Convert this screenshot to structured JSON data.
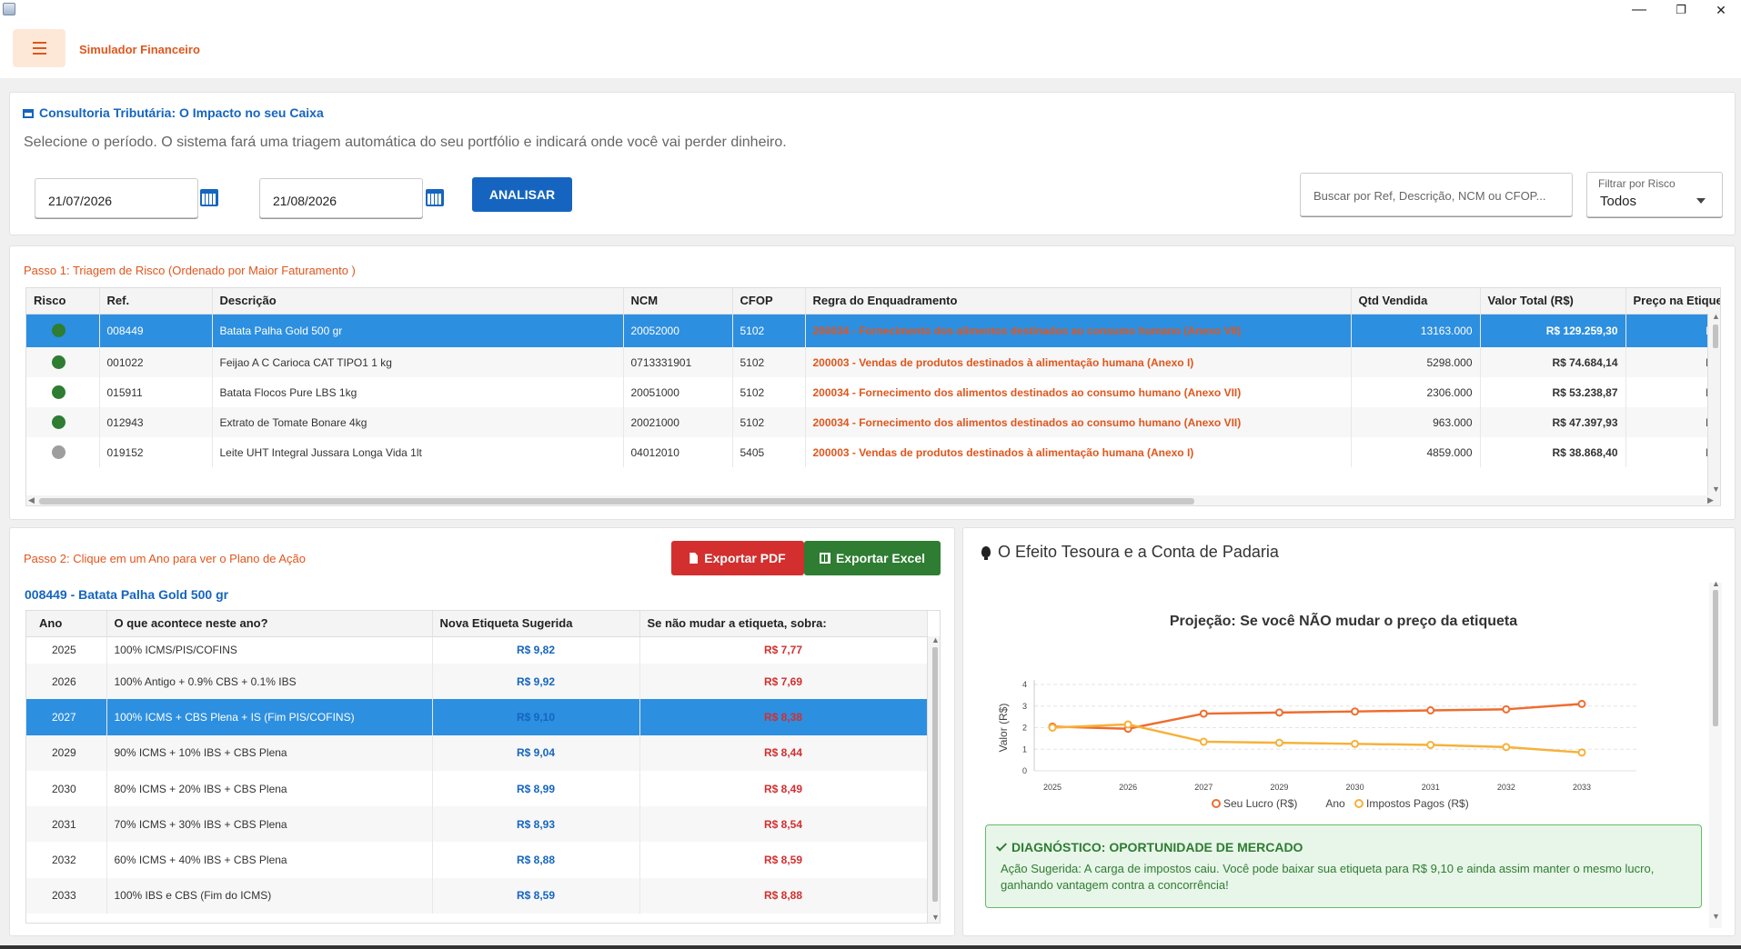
{
  "app": {
    "title": "Simulador Financeiro",
    "window_controls": {
      "minimize": "—",
      "restore": "❐",
      "close": "✕"
    }
  },
  "header_card": {
    "title": "Consultoria Tributária: O Impacto no seu Caixa",
    "subtitle": "Selecione o período. O sistema fará uma triagem automática do seu portfólio e indicará onde você vai perder dinheiro.",
    "date_start": "21/07/2026",
    "date_end": "21/08/2026",
    "analyze_label": "ANALISAR",
    "search_placeholder": "Buscar por Ref, Descrição, NCM ou CFOP...",
    "filter_label": "Filtrar por Risco",
    "filter_value": "Todos"
  },
  "step1": {
    "title": "Passo 1: Triagem de Risco (Ordenado por Maior Faturamento  )",
    "columns": [
      "Risco",
      "Ref.",
      "Descrição",
      "NCM",
      "CFOP",
      "Regra do Enquadramento",
      "Qtd Vendida",
      "Valor Total (R$)",
      "Preço na Etiqueta"
    ],
    "rows": [
      {
        "risk_color": "#2e7d32",
        "ref": "008449",
        "desc": "Batata  Palha Gold 500 gr",
        "ncm": "20052000",
        "cfop": "5102",
        "regra": "200034 - Fornecimento dos alimentos destinados ao consumo humano (Anexo VII)",
        "qtd": "13163.000",
        "valor": "R$ 129.259,30",
        "preco": "R$"
      },
      {
        "risk_color": "#2e7d32",
        "ref": "001022",
        "desc": "Feijao A C Carioca CAT TIPO1 1 kg",
        "ncm": "0713331901",
        "cfop": "5102",
        "regra": "200003 - Vendas de produtos destinados à alimentação humana (Anexo I)",
        "qtd": "5298.000",
        "valor": "R$ 74.684,14",
        "preco": "R$"
      },
      {
        "risk_color": "#2e7d32",
        "ref": "015911",
        "desc": "Batata Flocos Pure LBS 1kg",
        "ncm": "20051000",
        "cfop": "5102",
        "regra": "200034 - Fornecimento dos alimentos destinados ao consumo humano (Anexo VII)",
        "qtd": "2306.000",
        "valor": "R$ 53.238,87",
        "preco": "R$"
      },
      {
        "risk_color": "#2e7d32",
        "ref": "012943",
        "desc": "Extrato de Tomate Bonare 4kg",
        "ncm": "20021000",
        "cfop": "5102",
        "regra": "200034 - Fornecimento dos alimentos destinados ao consumo humano (Anexo VII)",
        "qtd": "963.000",
        "valor": "R$ 47.397,93",
        "preco": "R$"
      },
      {
        "risk_color": "#9e9e9e",
        "ref": "019152",
        "desc": "Leite UHT Integral Jussara Longa Vida  1lt",
        "ncm": "04012010",
        "cfop": "5405",
        "regra": "200003 - Vendas de produtos destinados à alimentação humana (Anexo I)",
        "qtd": "4859.000",
        "valor": "R$ 38.868,40",
        "preco": "R$"
      }
    ]
  },
  "step2": {
    "title": "Passo 2: Clique em um Ano para ver o Plano de Ação",
    "export_pdf": "Exportar PDF",
    "export_excel": "Exportar Excel",
    "product": "008449 - Batata  Palha Gold 500 gr",
    "columns": [
      "Ano",
      "O que acontece neste ano?",
      "Nova Etiqueta Sugerida",
      "Se não mudar a etiqueta, sobra:"
    ],
    "rows": [
      {
        "ano": "2025",
        "desc": "100% ICMS/PIS/COFINS",
        "nova": "R$ 9,82",
        "sobra": "R$ 7,77"
      },
      {
        "ano": "2026",
        "desc": "100% Antigo + 0.9% CBS + 0.1% IBS",
        "nova": "R$ 9,92",
        "sobra": "R$ 7,69"
      },
      {
        "ano": "2027",
        "desc": "100% ICMS + CBS Plena + IS (Fim PIS/COFINS)",
        "nova": "R$ 9,10",
        "sobra": "R$ 8,38"
      },
      {
        "ano": "2029",
        "desc": "90% ICMS + 10% IBS + CBS Plena",
        "nova": "R$ 9,04",
        "sobra": "R$ 8,44"
      },
      {
        "ano": "2030",
        "desc": "80% ICMS + 20% IBS + CBS Plena",
        "nova": "R$ 8,99",
        "sobra": "R$ 8,49"
      },
      {
        "ano": "2031",
        "desc": "70% ICMS + 30% IBS + CBS Plena",
        "nova": "R$ 8,93",
        "sobra": "R$ 8,54"
      },
      {
        "ano": "2032",
        "desc": "60% ICMS + 40% IBS + CBS Plena",
        "nova": "R$ 8,88",
        "sobra": "R$ 8,59"
      },
      {
        "ano": "2033",
        "desc": "100% IBS e CBS (Fim do ICMS)",
        "nova": "R$ 8,59",
        "sobra": "R$ 8,88"
      }
    ]
  },
  "chart_panel": {
    "title": "O Efeito Tesoura e a Conta de Padaria",
    "diagnostic_title": "DIAGNÓSTICO: OPORTUNIDADE DE MERCADO",
    "diagnostic_text": "Ação Sugerida: A carga de impostos caiu. Você pode baixar sua etiqueta para R$ 9,10 e ainda assim manter o mesmo lucro, ganhando vantagem contra a concorrência!"
  },
  "chart_data": {
    "type": "line",
    "title": "Projeção: Se você NÃO mudar o preço da etiqueta",
    "xlabel": "Ano",
    "ylabel": "Valor (R$)",
    "categories": [
      "2025",
      "2026",
      "2027",
      "2029",
      "2030",
      "2031",
      "2032",
      "2033"
    ],
    "ylim": [
      0,
      4
    ],
    "yticks": [
      "0",
      "1",
      "2",
      "3",
      "4"
    ],
    "grid": true,
    "legend_position": "bottom",
    "series": [
      {
        "name": "Seu Lucro (R$)",
        "color": "#ef6c2f",
        "values": [
          2.05,
          1.95,
          2.65,
          2.7,
          2.75,
          2.8,
          2.85,
          3.1
        ]
      },
      {
        "name": "Impostos Pagos (R$)",
        "color": "#f6b13a",
        "values": [
          2.0,
          2.15,
          1.35,
          1.3,
          1.25,
          1.2,
          1.1,
          0.85
        ]
      }
    ]
  }
}
